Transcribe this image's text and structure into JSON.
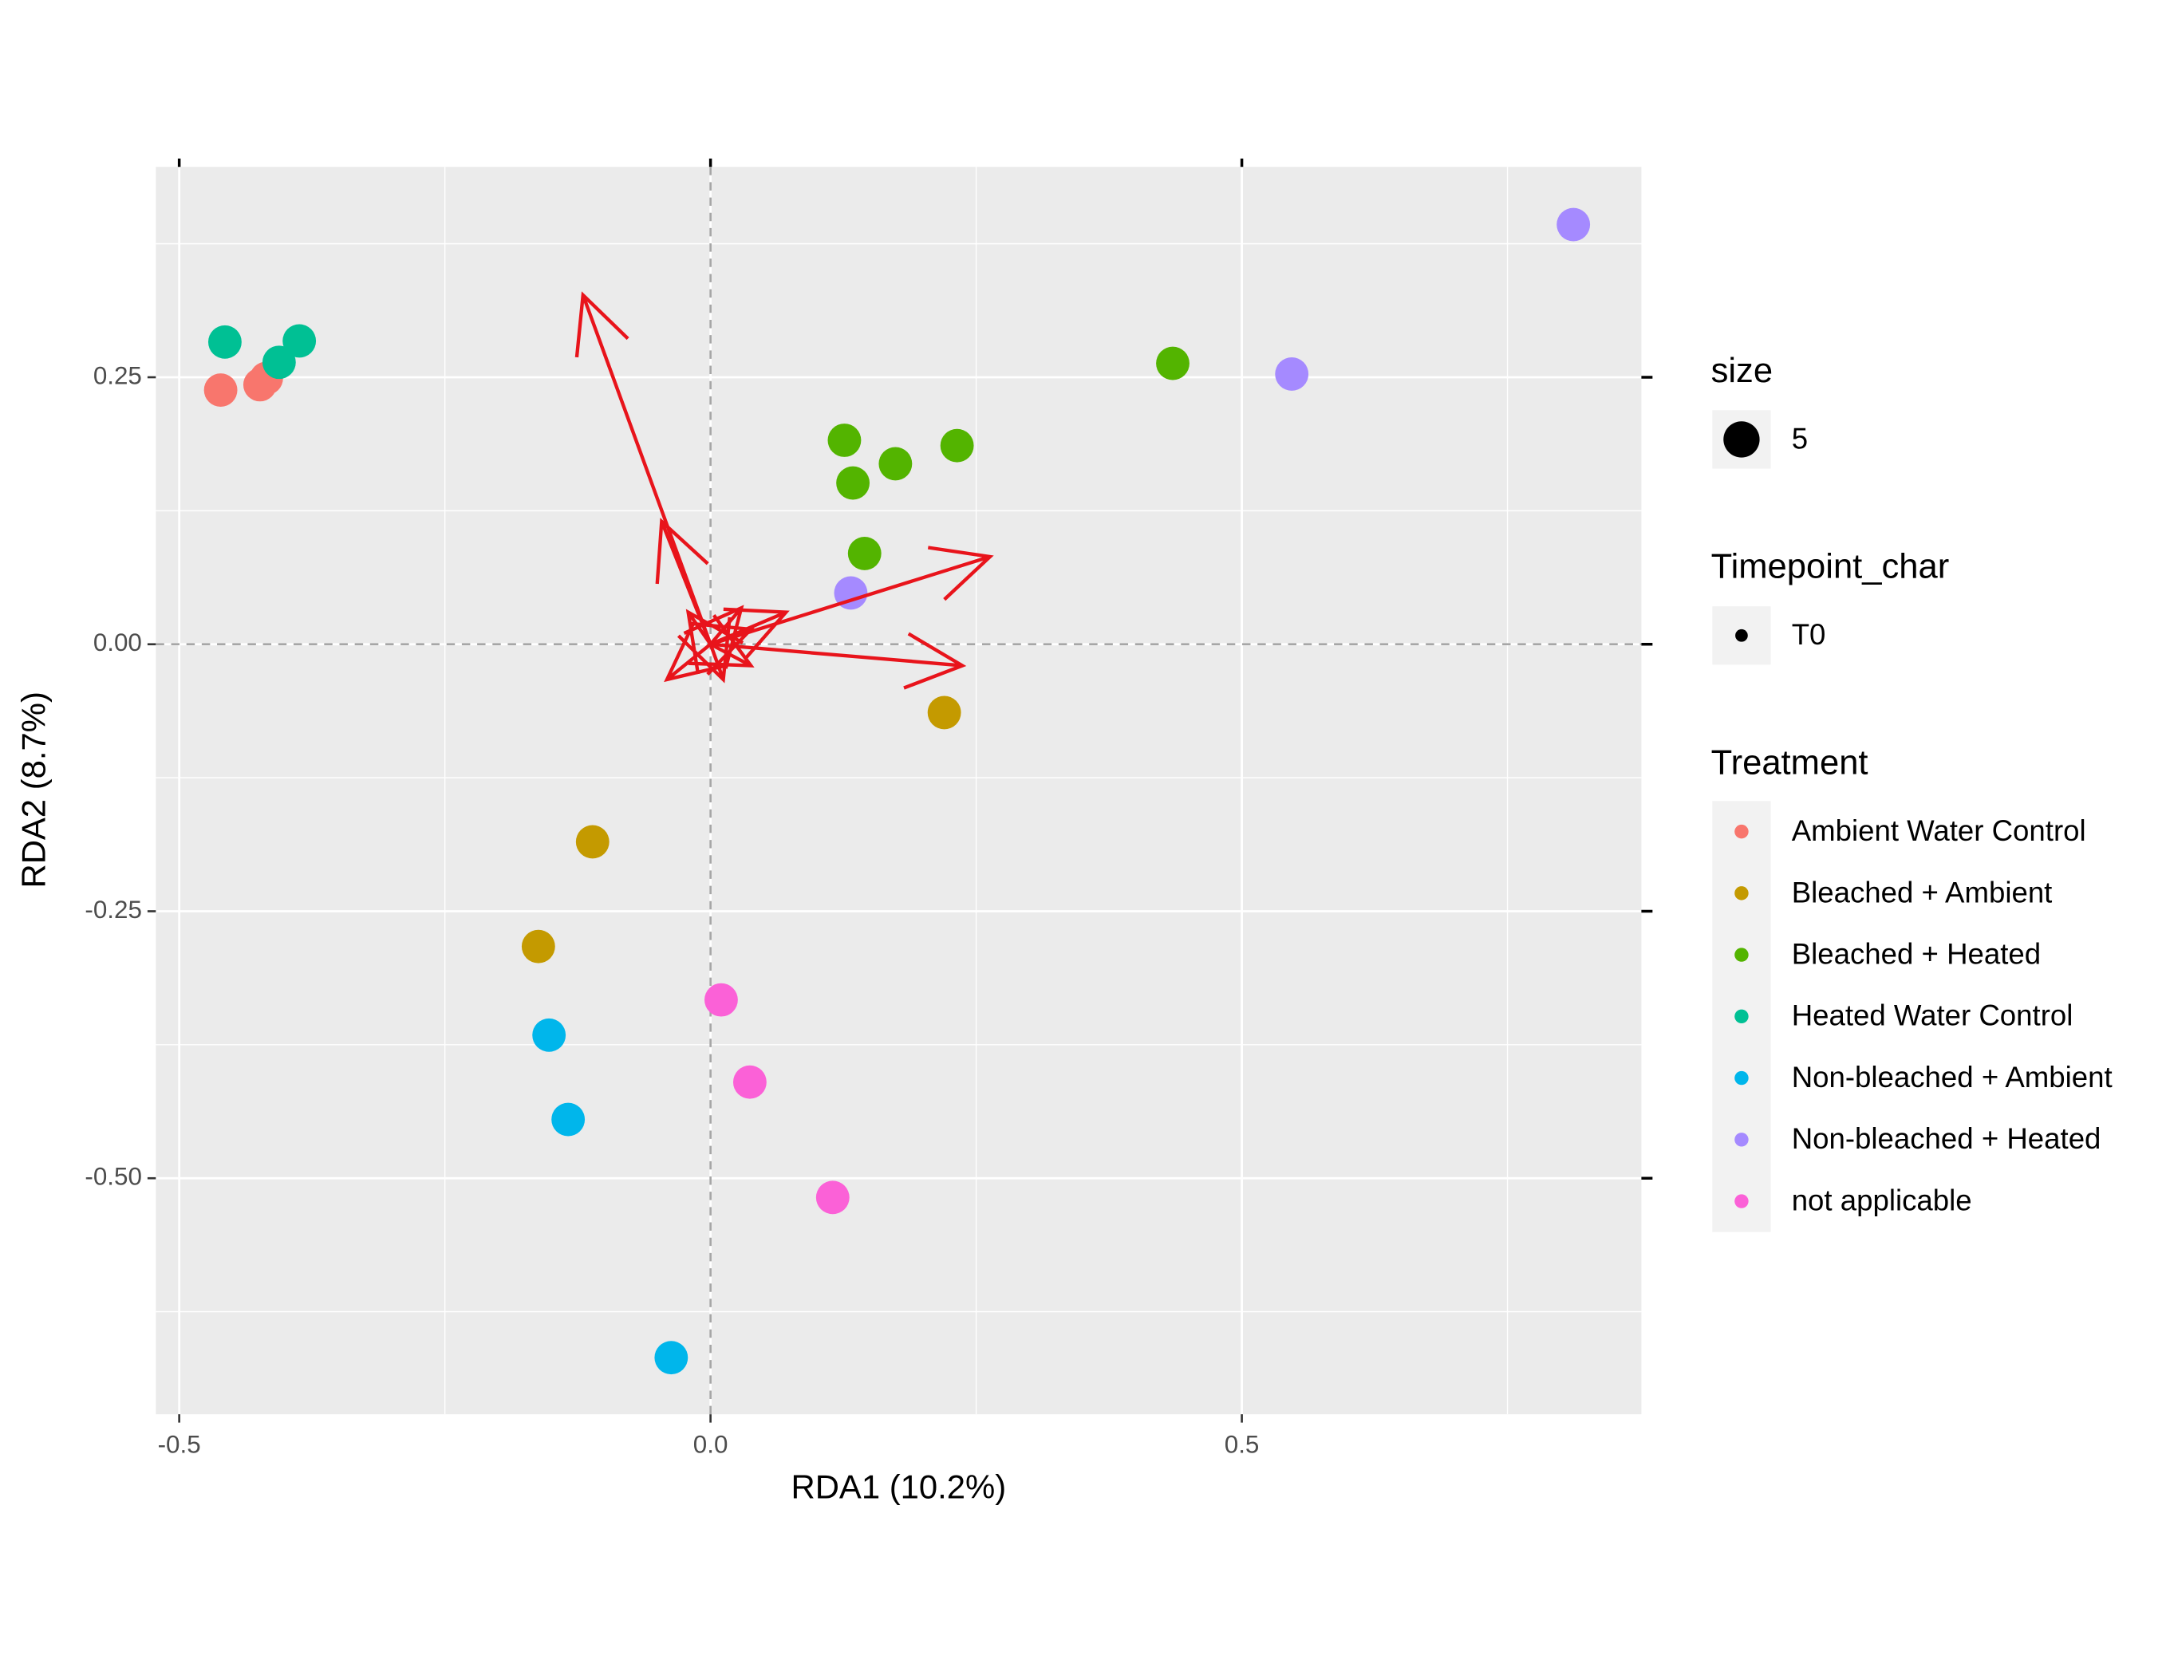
{
  "chart_data": {
    "type": "scatter",
    "xlabel": "RDA1 (10.2%)",
    "ylabel": "RDA2 (8.7%)",
    "xlim": [
      -0.522,
      0.876
    ],
    "ylim": [
      -0.721,
      0.447
    ],
    "xticks": [
      {
        "value": -0.5,
        "label": "-0.5"
      },
      {
        "value": 0,
        "label": "0.0"
      },
      {
        "value": 0.5,
        "label": "0.5"
      }
    ],
    "yticks": [
      {
        "value": 0.25,
        "label": "0.25"
      },
      {
        "value": 0,
        "label": "0.00"
      },
      {
        "value": -0.25,
        "label": "-0.25"
      },
      {
        "value": -0.5,
        "label": "-0.50"
      }
    ],
    "xminor": [
      -0.25,
      0.25,
      0.75
    ],
    "yminor": [
      0.375,
      0.125,
      -0.125,
      -0.375,
      -0.625
    ],
    "grid": true,
    "zero_lines": true,
    "size_legend": {
      "title": "size",
      "labels": [
        "5"
      ]
    },
    "timepoint_legend": {
      "title": "Timepoint_char",
      "labels": [
        "T0"
      ]
    },
    "legend_title": "Treatment",
    "series": [
      {
        "name": "Ambient Water Control",
        "color": "#F8766D",
        "x": [
          -0.461,
          -0.424,
          -0.418
        ],
        "y": [
          0.238,
          0.243,
          0.249
        ]
      },
      {
        "name": "Bleached + Ambient",
        "color": "#C49A00",
        "x": [
          0.22,
          -0.111,
          -0.162
        ],
        "y": [
          -0.064,
          -0.185,
          -0.283
        ]
      },
      {
        "name": "Bleached + Heated",
        "color": "#53B400",
        "x": [
          0.435,
          0.126,
          0.134,
          0.174,
          0.232,
          0.145
        ],
        "y": [
          0.263,
          0.191,
          0.151,
          0.169,
          0.186,
          0.085
        ]
      },
      {
        "name": "Heated Water Control",
        "color": "#00C094",
        "x": [
          -0.457,
          -0.406,
          -0.387
        ],
        "y": [
          0.283,
          0.264,
          0.284
        ]
      },
      {
        "name": "Non-bleached + Ambient",
        "color": "#00B6EB",
        "x": [
          -0.152,
          -0.134,
          -0.037
        ],
        "y": [
          -0.366,
          -0.445,
          -0.668
        ]
      },
      {
        "name": "Non-bleached + Heated",
        "color": "#A58AFF",
        "x": [
          0.812,
          0.547,
          0.132
        ],
        "y": [
          0.393,
          0.253,
          0.048
        ]
      },
      {
        "name": "not applicable",
        "color": "#FB61D7",
        "x": [
          0.01,
          0.037,
          0.115
        ],
        "y": [
          -0.333,
          -0.41,
          -0.518
        ]
      }
    ],
    "arrows": {
      "color": "#E8141B",
      "x": [
        -0.12,
        0.263,
        0.237,
        -0.046,
        0.071,
        0.029,
        0.038,
        -0.041,
        0.012,
        -0.021,
        0.038
      ],
      "y": [
        0.327,
        0.082,
        -0.02,
        0.115,
        0.03,
        0.034,
        0.014,
        -0.033,
        -0.033,
        0.03,
        -0.02
      ]
    }
  }
}
